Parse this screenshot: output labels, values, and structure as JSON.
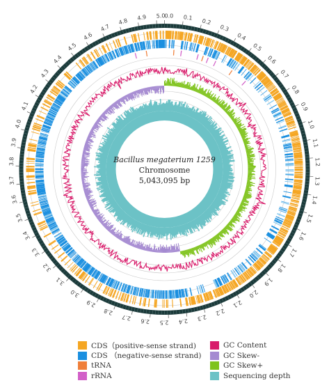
{
  "center_text": {
    "organism": "Bacillus megaterium 1259",
    "molecule": "Chromosome",
    "length": "5,043,095 bp"
  },
  "genome_size_bp": 5043095,
  "scale": {
    "unit": "Mbp",
    "tick_labels": [
      "0.0",
      "0.1",
      "0.2",
      "0.3",
      "0.4",
      "0.5",
      "0.6",
      "0.7",
      "0.8",
      "0.9",
      "1.0",
      "1.1",
      "1.2",
      "1.3",
      "1.4",
      "1.5",
      "1.6",
      "1.7",
      "1.8",
      "1.9",
      "2.0",
      "2.1",
      "2.2",
      "2.3",
      "2.4",
      "2.5",
      "2.6",
      "2.7",
      "2.8",
      "2.9",
      "3.0",
      "3.1",
      "3.2",
      "3.3",
      "3.4",
      "3.5",
      "3.6",
      "3.7",
      "3.8",
      "3.9",
      "4.0",
      "4.1",
      "4.2",
      "4.3",
      "4.4",
      "4.5",
      "4.6",
      "4.7",
      "4.8",
      "4.9",
      "5.0"
    ]
  },
  "legend": {
    "left": [
      {
        "label": "CDS（positive-sense strand)",
        "color": "#f5a623"
      },
      {
        "label": "CDS （negative-sense strand)",
        "color": "#1a8fe0"
      },
      {
        "label": "tRNA",
        "color": "#ef7f3a"
      },
      {
        "label": "rRNA",
        "color": "#d260c8"
      }
    ],
    "right": [
      {
        "label": "GC Content",
        "color": "#d81b6a"
      },
      {
        "label": "GC Skew-",
        "color": "#a58ad1"
      },
      {
        "label": "GC Skew+",
        "color": "#7fc31c"
      },
      {
        "label": "Sequencing depth",
        "color": "#6cc2c6"
      }
    ]
  },
  "colors": {
    "scale_ring": "#1b3a3a",
    "cds_positive": "#f5a623",
    "cds_negative": "#1a8fe0",
    "trna": "#ef7f3a",
    "rrna": "#d260c8",
    "gc_content": "#d81b6a",
    "gc_skew_minus": "#a58ad1",
    "gc_skew_plus": "#7fc31c",
    "sequencing_depth": "#6cc2c6"
  }
}
